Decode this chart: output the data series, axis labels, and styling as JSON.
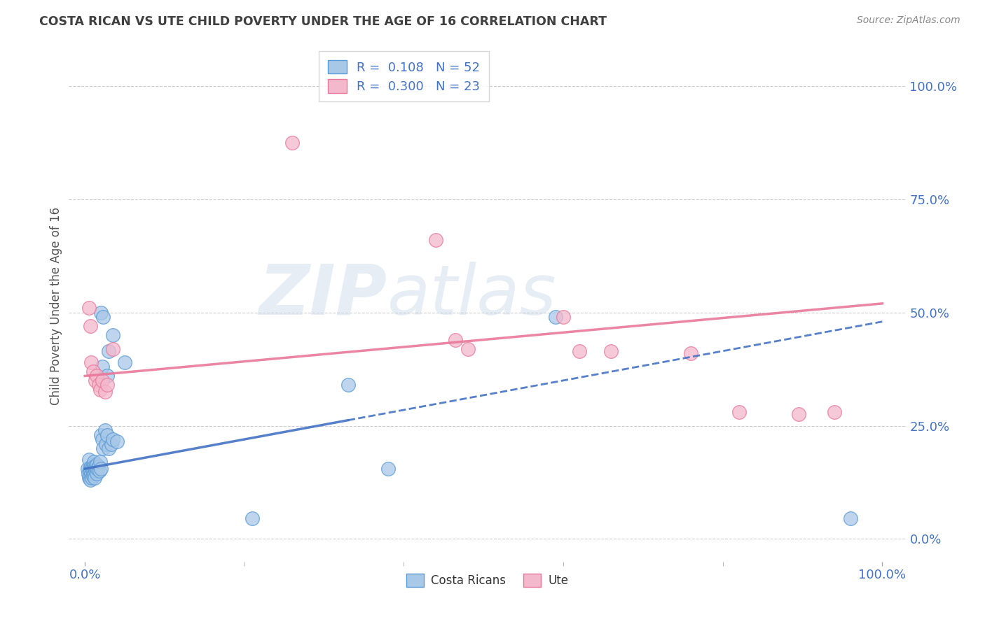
{
  "title": "COSTA RICAN VS UTE CHILD POVERTY UNDER THE AGE OF 16 CORRELATION CHART",
  "source": "Source: ZipAtlas.com",
  "ylabel": "Child Poverty Under the Age of 16",
  "watermark_zip": "ZIP",
  "watermark_atlas": "atlas",
  "blue_color": "#a8c8e8",
  "pink_color": "#f4b8cc",
  "blue_edge_color": "#5b9bd5",
  "pink_edge_color": "#e8789a",
  "blue_line_color": "#4472c4",
  "pink_line_color": "#e8789a",
  "axis_label_color": "#4472c4",
  "title_color": "#404040",
  "source_color": "#888888",
  "grid_color": "#cccccc",
  "blue_scatter": [
    [
      0.003,
      0.155
    ],
    [
      0.004,
      0.145
    ],
    [
      0.005,
      0.135
    ],
    [
      0.005,
      0.175
    ],
    [
      0.006,
      0.155
    ],
    [
      0.006,
      0.14
    ],
    [
      0.007,
      0.15
    ],
    [
      0.007,
      0.13
    ],
    [
      0.008,
      0.16
    ],
    [
      0.008,
      0.145
    ],
    [
      0.009,
      0.155
    ],
    [
      0.009,
      0.135
    ],
    [
      0.01,
      0.165
    ],
    [
      0.01,
      0.15
    ],
    [
      0.01,
      0.14
    ],
    [
      0.011,
      0.17
    ],
    [
      0.011,
      0.16
    ],
    [
      0.011,
      0.145
    ],
    [
      0.012,
      0.155
    ],
    [
      0.012,
      0.135
    ],
    [
      0.013,
      0.16
    ],
    [
      0.013,
      0.15
    ],
    [
      0.014,
      0.155
    ],
    [
      0.015,
      0.165
    ],
    [
      0.015,
      0.145
    ],
    [
      0.016,
      0.155
    ],
    [
      0.017,
      0.16
    ],
    [
      0.018,
      0.15
    ],
    [
      0.019,
      0.17
    ],
    [
      0.02,
      0.155
    ],
    [
      0.02,
      0.23
    ],
    [
      0.022,
      0.22
    ],
    [
      0.023,
      0.2
    ],
    [
      0.025,
      0.24
    ],
    [
      0.026,
      0.21
    ],
    [
      0.028,
      0.23
    ],
    [
      0.03,
      0.2
    ],
    [
      0.033,
      0.21
    ],
    [
      0.035,
      0.22
    ],
    [
      0.04,
      0.215
    ],
    [
      0.022,
      0.38
    ],
    [
      0.028,
      0.36
    ],
    [
      0.035,
      0.45
    ],
    [
      0.03,
      0.415
    ],
    [
      0.05,
      0.39
    ],
    [
      0.02,
      0.5
    ],
    [
      0.023,
      0.49
    ],
    [
      0.21,
      0.045
    ],
    [
      0.33,
      0.34
    ],
    [
      0.38,
      0.155
    ],
    [
      0.59,
      0.49
    ],
    [
      0.96,
      0.045
    ]
  ],
  "pink_scatter": [
    [
      0.005,
      0.51
    ],
    [
      0.007,
      0.47
    ],
    [
      0.008,
      0.39
    ],
    [
      0.01,
      0.37
    ],
    [
      0.013,
      0.35
    ],
    [
      0.015,
      0.36
    ],
    [
      0.017,
      0.34
    ],
    [
      0.019,
      0.33
    ],
    [
      0.022,
      0.35
    ],
    [
      0.025,
      0.325
    ],
    [
      0.028,
      0.34
    ],
    [
      0.035,
      0.42
    ],
    [
      0.26,
      0.875
    ],
    [
      0.44,
      0.66
    ],
    [
      0.465,
      0.44
    ],
    [
      0.48,
      0.42
    ],
    [
      0.6,
      0.49
    ],
    [
      0.62,
      0.415
    ],
    [
      0.66,
      0.415
    ],
    [
      0.76,
      0.41
    ],
    [
      0.82,
      0.28
    ],
    [
      0.895,
      0.275
    ],
    [
      0.94,
      0.28
    ]
  ],
  "blue_trendline_x": [
    0.0,
    1.0
  ],
  "blue_trendline_y": [
    0.155,
    0.48
  ],
  "pink_trendline_x": [
    0.0,
    1.0
  ],
  "pink_trendline_y": [
    0.36,
    0.52
  ],
  "ytick_positions": [
    0.0,
    0.25,
    0.5,
    0.75,
    1.0
  ],
  "ytick_labels": [
    "0.0%",
    "25.0%",
    "50.0%",
    "75.0%",
    "100.0%"
  ],
  "xtick_positions": [
    0.0,
    1.0
  ],
  "xtick_labels": [
    "0.0%",
    "100.0%"
  ]
}
